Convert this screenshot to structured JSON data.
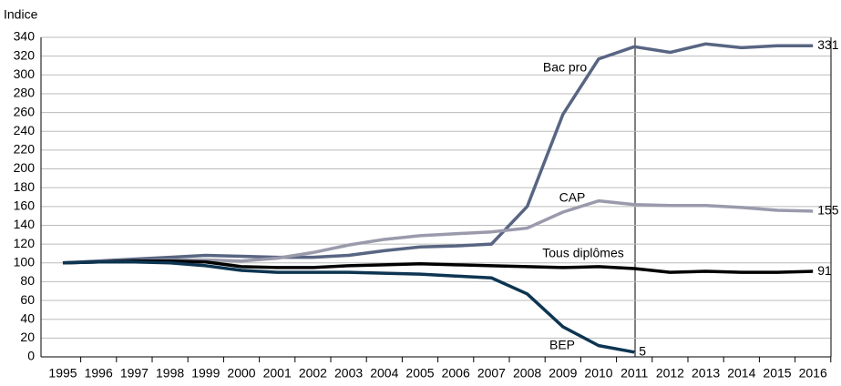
{
  "chart_data": {
    "type": "line",
    "y_axis_label": "Indice",
    "categories": [
      "1995",
      "1996",
      "1997",
      "1998",
      "1999",
      "2000",
      "2001",
      "2002",
      "2003",
      "2004",
      "2005",
      "2006",
      "2007",
      "2008",
      "2009",
      "2010",
      "2011",
      "2012",
      "2013",
      "2014",
      "2015",
      "2016"
    ],
    "series": [
      {
        "name": "Bac pro",
        "color": "#586582",
        "values": [
          100,
          102,
          104,
          106,
          108,
          107,
          106,
          106,
          108,
          113,
          117,
          118,
          120,
          160,
          258,
          317,
          330,
          324,
          333,
          329,
          331,
          331
        ]
      },
      {
        "name": "CAP",
        "color": "#9a9aac",
        "values": [
          100,
          101,
          102,
          103,
          103,
          102,
          105,
          111,
          119,
          125,
          129,
          131,
          133,
          137,
          154,
          166,
          162,
          161,
          161,
          159,
          156,
          155
        ]
      },
      {
        "name": "Tous diplômes",
        "color": "#000000",
        "values": [
          100,
          101,
          102,
          102,
          101,
          96,
          95,
          95,
          97,
          98,
          99,
          98,
          97,
          96,
          95,
          96,
          94,
          90,
          91,
          90,
          90,
          91
        ]
      },
      {
        "name": "BEP",
        "color": "#0d3552",
        "values": [
          100,
          101,
          101,
          100,
          97,
          92,
          90,
          90,
          90,
          89,
          88,
          86,
          84,
          67,
          32,
          12,
          5,
          null,
          null,
          null,
          null,
          null
        ]
      }
    ],
    "ylim": [
      0,
      340
    ],
    "yticks": [
      0,
      20,
      40,
      60,
      80,
      100,
      120,
      140,
      160,
      180,
      200,
      220,
      240,
      260,
      280,
      300,
      320,
      340
    ],
    "grid": true
  }
}
